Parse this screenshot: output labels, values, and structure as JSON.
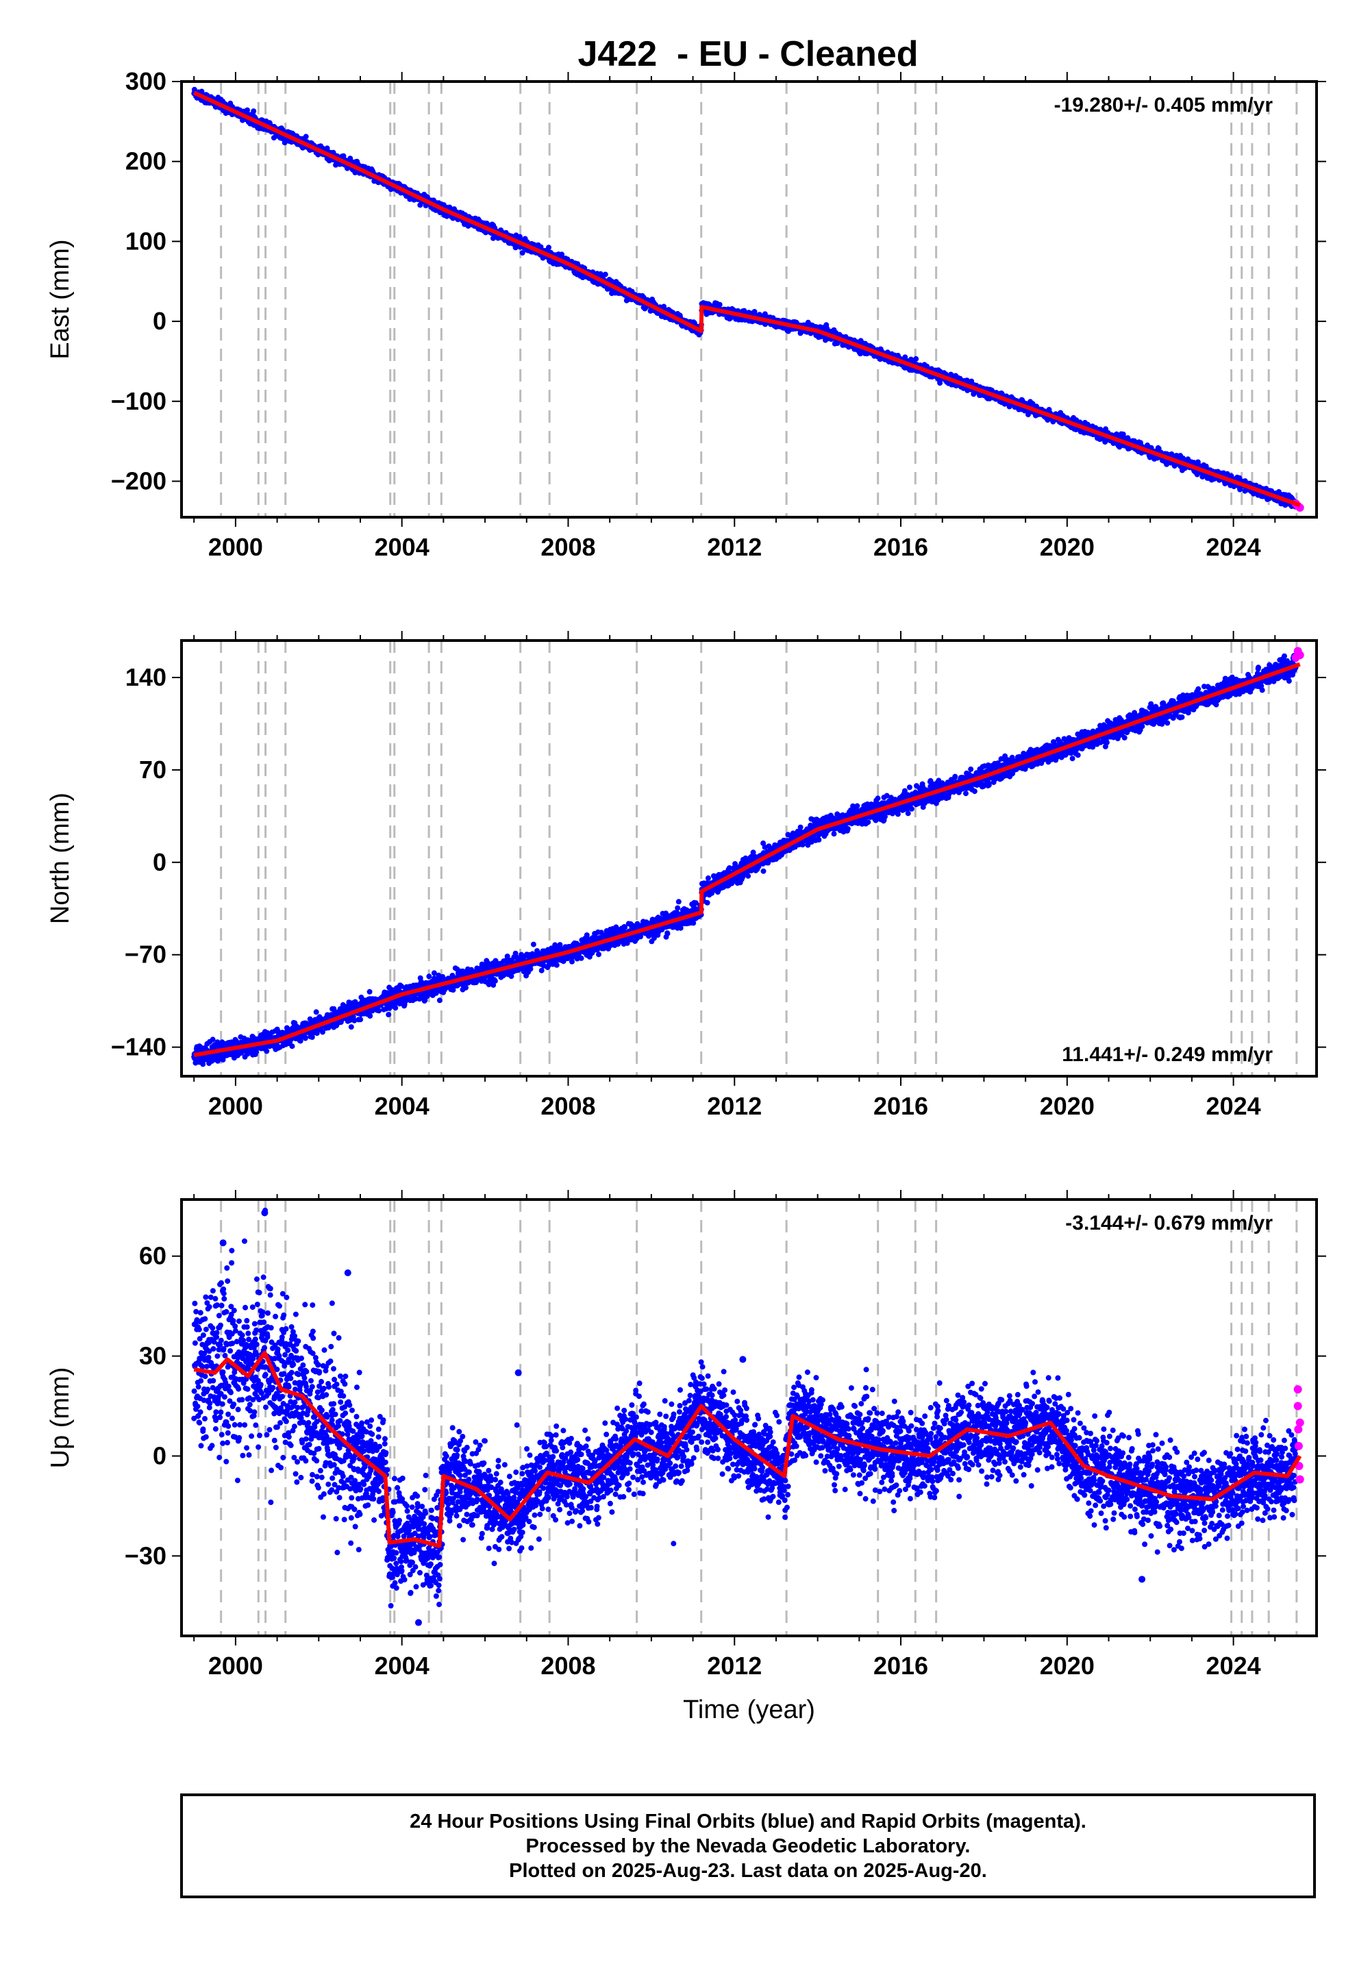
{
  "title": "J422  - EU - Cleaned",
  "colors": {
    "final": "#0000ff",
    "rapid": "#ff00ff",
    "model": "#ff0000",
    "grid": "#bbbbbb"
  },
  "caption": {
    "line1": "24 Hour Positions Using Final Orbits (blue) and Rapid Orbits (magenta).",
    "line2": "Processed by the Nevada Geodetic Laboratory.",
    "line3": "Plotted on 2025-Aug-23. Last data on 2025-Aug-20."
  },
  "chart_data": [
    {
      "type": "scatter",
      "name": "east",
      "ylabel": "East (mm)",
      "xlabel": "",
      "xlim": [
        1998.7,
        2026.0
      ],
      "ylim": [
        -245,
        300
      ],
      "xticks": [
        2000,
        2004,
        2008,
        2012,
        2016,
        2020,
        2024
      ],
      "yticks": [
        300,
        200,
        100,
        0,
        -100,
        -200
      ],
      "ytick_labels": [
        "300",
        "200",
        "100",
        "0",
        "−100",
        "−200"
      ],
      "annotation": "-19.280+/- 0.405 mm/yr",
      "annotation_pos": "top-right",
      "rate_mm_per_yr": -19.28,
      "trend": [
        [
          1999.0,
          286
        ],
        [
          2003.0,
          190
        ],
        [
          2005.0,
          140
        ],
        [
          2008.0,
          72
        ],
        [
          2011.2,
          -12
        ],
        [
          2011.21,
          18
        ],
        [
          2014.0,
          -12
        ],
        [
          2018.0,
          -88
        ],
        [
          2022.0,
          -163
        ],
        [
          2025.6,
          -230
        ]
      ],
      "scatter_sd": 3,
      "rapid_points": [
        [
          2025.5,
          -228
        ],
        [
          2025.55,
          -231
        ],
        [
          2025.6,
          -233
        ]
      ]
    },
    {
      "type": "scatter",
      "name": "north",
      "ylabel": "North (mm)",
      "xlabel": "",
      "xlim": [
        1998.7,
        2026.0
      ],
      "ylim": [
        -162,
        168
      ],
      "xticks": [
        2000,
        2004,
        2008,
        2012,
        2016,
        2020,
        2024
      ],
      "yticks": [
        140,
        70,
        0,
        -70,
        -140
      ],
      "ytick_labels": [
        "140",
        "70",
        "0",
        "−70",
        "−140"
      ],
      "annotation": "11.441+/- 0.249 mm/yr",
      "annotation_pos": "bottom-right",
      "rate_mm_per_yr": 11.441,
      "trend": [
        [
          1999.0,
          -146
        ],
        [
          2001.0,
          -135
        ],
        [
          2004.0,
          -100
        ],
        [
          2008.0,
          -68
        ],
        [
          2011.2,
          -38
        ],
        [
          2011.21,
          -22
        ],
        [
          2014.0,
          25
        ],
        [
          2018.0,
          65
        ],
        [
          2022.0,
          110
        ],
        [
          2025.6,
          150
        ]
      ],
      "scatter_sd": 3.5,
      "rapid_points": [
        [
          2025.5,
          155
        ],
        [
          2025.55,
          160
        ],
        [
          2025.6,
          157
        ]
      ]
    },
    {
      "type": "scatter",
      "name": "up",
      "ylabel": "Up (mm)",
      "xlabel": "Time (year)",
      "xlim": [
        1998.7,
        2026.0
      ],
      "ylim": [
        -54,
        77
      ],
      "xticks": [
        2000,
        2004,
        2008,
        2012,
        2016,
        2020,
        2024
      ],
      "yticks": [
        60,
        30,
        0,
        -30
      ],
      "ytick_labels": [
        "60",
        "30",
        "0",
        "−30"
      ],
      "annotation": "-3.144+/- 0.679 mm/yr",
      "annotation_pos": "top-right",
      "rate_mm_per_yr": -3.144,
      "trend": [
        [
          1999.0,
          26
        ],
        [
          1999.5,
          25
        ],
        [
          1999.8,
          29
        ],
        [
          2000.3,
          24
        ],
        [
          2000.7,
          31
        ],
        [
          2001.1,
          20
        ],
        [
          2001.6,
          18
        ],
        [
          2002.3,
          8
        ],
        [
          2003.0,
          0
        ],
        [
          2003.6,
          -6
        ],
        [
          2003.7,
          -26
        ],
        [
          2004.3,
          -25
        ],
        [
          2004.9,
          -27
        ],
        [
          2005.0,
          -6
        ],
        [
          2005.8,
          -10
        ],
        [
          2006.6,
          -19
        ],
        [
          2007.5,
          -5
        ],
        [
          2008.5,
          -8
        ],
        [
          2009.6,
          5
        ],
        [
          2010.4,
          0
        ],
        [
          2011.2,
          15
        ],
        [
          2012.0,
          5
        ],
        [
          2013.2,
          -6
        ],
        [
          2013.4,
          12
        ],
        [
          2014.5,
          5
        ],
        [
          2015.5,
          2
        ],
        [
          2016.7,
          0
        ],
        [
          2017.6,
          8
        ],
        [
          2018.6,
          6
        ],
        [
          2019.6,
          10
        ],
        [
          2020.4,
          -3
        ],
        [
          2021.0,
          -6
        ],
        [
          2022.5,
          -12
        ],
        [
          2023.5,
          -13
        ],
        [
          2024.5,
          -5
        ],
        [
          2025.3,
          -6
        ],
        [
          2025.6,
          0
        ]
      ],
      "noise_segments": [
        [
          1998.7,
          2003.0,
          12
        ],
        [
          2003.0,
          2005.0,
          7
        ],
        [
          2005.0,
          2026.0,
          6
        ]
      ],
      "outliers": [
        [
          1999.7,
          64
        ],
        [
          2000.7,
          73
        ],
        [
          2004.4,
          -50
        ],
        [
          2002.7,
          55
        ],
        [
          2006.8,
          25
        ],
        [
          2012.2,
          29
        ],
        [
          2021.8,
          -37
        ]
      ],
      "rapid_points": [
        [
          2025.55,
          20
        ],
        [
          2025.55,
          15
        ],
        [
          2025.56,
          8
        ],
        [
          2025.57,
          3
        ],
        [
          2025.58,
          -3
        ],
        [
          2025.6,
          -7
        ],
        [
          2025.6,
          10
        ]
      ]
    }
  ],
  "event_lines": [
    1999.65,
    2000.55,
    2000.72,
    2001.2,
    2003.72,
    2003.82,
    2004.65,
    2004.95,
    2006.85,
    2007.55,
    2009.65,
    2011.2,
    2013.25,
    2015.45,
    2016.35,
    2016.85,
    2023.95,
    2024.2,
    2024.45,
    2024.85,
    2025.52
  ]
}
